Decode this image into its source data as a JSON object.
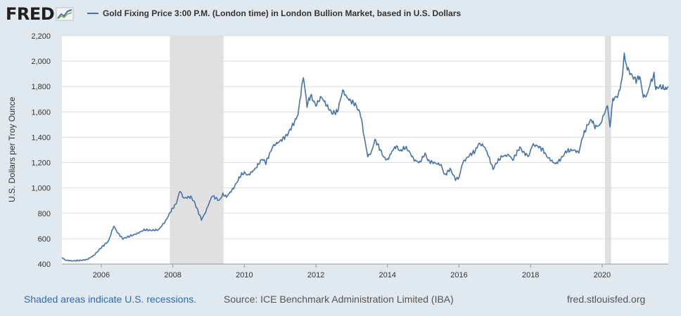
{
  "header": {
    "logo_text": "FRED",
    "logo_icon": "chart-line-icon",
    "legend_label": "Gold Fixing Price 3:00 P.M. (London time) in London Bullion Market, based in U.S. Dollars"
  },
  "footer": {
    "recession_note": "Shaded areas indicate U.S. recessions.",
    "source": "Source: ICE Benchmark Administration Limited (IBA)",
    "url": "fred.stlouisfed.org"
  },
  "colors": {
    "line": "#4572a7",
    "recession": "#e0e0e0",
    "grid": "#dddddd",
    "background": "#e1e9f0"
  },
  "chart_data": {
    "type": "line",
    "title": "",
    "xlabel": "",
    "ylabel": "U.S. Dollars per Troy Ounce",
    "xlim": [
      2004.9,
      2021.85
    ],
    "ylim": [
      400,
      2200
    ],
    "grid": "horizontal",
    "x_ticks": [
      2006,
      2008,
      2010,
      2012,
      2014,
      2016,
      2018,
      2020
    ],
    "x_tick_labels": [
      "2006",
      "2008",
      "2010",
      "2012",
      "2014",
      "2016",
      "2018",
      "2020"
    ],
    "y_ticks": [
      400,
      600,
      800,
      1000,
      1200,
      1400,
      1600,
      1800,
      2000,
      2200
    ],
    "y_tick_labels": [
      "400",
      "600",
      "800",
      "1,000",
      "1,200",
      "1,400",
      "1,600",
      "1,800",
      "2,000",
      "2,200"
    ],
    "recessions": [
      [
        2007.92,
        2009.42
      ],
      [
        2020.08,
        2020.25
      ]
    ],
    "series": [
      {
        "values": [
          [
            2004.9,
            452
          ],
          [
            2005.0,
            430
          ],
          [
            2005.2,
            425
          ],
          [
            2005.4,
            428
          ],
          [
            2005.6,
            435
          ],
          [
            2005.8,
            470
          ],
          [
            2006.0,
            530
          ],
          [
            2006.2,
            580
          ],
          [
            2006.35,
            700
          ],
          [
            2006.45,
            650
          ],
          [
            2006.6,
            600
          ],
          [
            2006.8,
            620
          ],
          [
            2007.0,
            640
          ],
          [
            2007.2,
            670
          ],
          [
            2007.4,
            665
          ],
          [
            2007.6,
            670
          ],
          [
            2007.8,
            740
          ],
          [
            2007.95,
            820
          ],
          [
            2008.1,
            880
          ],
          [
            2008.2,
            980
          ],
          [
            2008.3,
            920
          ],
          [
            2008.5,
            930
          ],
          [
            2008.6,
            890
          ],
          [
            2008.7,
            820
          ],
          [
            2008.8,
            750
          ],
          [
            2008.9,
            800
          ],
          [
            2009.0,
            870
          ],
          [
            2009.1,
            940
          ],
          [
            2009.2,
            920
          ],
          [
            2009.3,
            900
          ],
          [
            2009.4,
            950
          ],
          [
            2009.5,
            930
          ],
          [
            2009.7,
            1000
          ],
          [
            2009.9,
            1100
          ],
          [
            2010.0,
            1120
          ],
          [
            2010.1,
            1100
          ],
          [
            2010.3,
            1150
          ],
          [
            2010.5,
            1230
          ],
          [
            2010.6,
            1200
          ],
          [
            2010.8,
            1330
          ],
          [
            2011.0,
            1370
          ],
          [
            2011.2,
            1420
          ],
          [
            2011.4,
            1520
          ],
          [
            2011.5,
            1580
          ],
          [
            2011.6,
            1790
          ],
          [
            2011.65,
            1880
          ],
          [
            2011.75,
            1650
          ],
          [
            2011.85,
            1730
          ],
          [
            2012.0,
            1650
          ],
          [
            2012.15,
            1720
          ],
          [
            2012.3,
            1650
          ],
          [
            2012.45,
            1590
          ],
          [
            2012.6,
            1600
          ],
          [
            2012.75,
            1770
          ],
          [
            2012.85,
            1720
          ],
          [
            2012.95,
            1690
          ],
          [
            2013.1,
            1660
          ],
          [
            2013.25,
            1580
          ],
          [
            2013.35,
            1400
          ],
          [
            2013.45,
            1250
          ],
          [
            2013.55,
            1280
          ],
          [
            2013.65,
            1380
          ],
          [
            2013.75,
            1330
          ],
          [
            2013.9,
            1240
          ],
          [
            2014.0,
            1220
          ],
          [
            2014.15,
            1300
          ],
          [
            2014.25,
            1330
          ],
          [
            2014.35,
            1290
          ],
          [
            2014.5,
            1320
          ],
          [
            2014.6,
            1290
          ],
          [
            2014.75,
            1220
          ],
          [
            2014.9,
            1200
          ],
          [
            2015.05,
            1270
          ],
          [
            2015.15,
            1210
          ],
          [
            2015.3,
            1200
          ],
          [
            2015.5,
            1180
          ],
          [
            2015.6,
            1100
          ],
          [
            2015.75,
            1150
          ],
          [
            2015.9,
            1070
          ],
          [
            2016.0,
            1080
          ],
          [
            2016.1,
            1200
          ],
          [
            2016.3,
            1260
          ],
          [
            2016.45,
            1290
          ],
          [
            2016.55,
            1350
          ],
          [
            2016.7,
            1330
          ],
          [
            2016.8,
            1270
          ],
          [
            2016.95,
            1150
          ],
          [
            2017.05,
            1200
          ],
          [
            2017.2,
            1250
          ],
          [
            2017.4,
            1260
          ],
          [
            2017.5,
            1220
          ],
          [
            2017.7,
            1320
          ],
          [
            2017.8,
            1280
          ],
          [
            2017.95,
            1250
          ],
          [
            2018.05,
            1340
          ],
          [
            2018.2,
            1330
          ],
          [
            2018.35,
            1300
          ],
          [
            2018.45,
            1250
          ],
          [
            2018.6,
            1210
          ],
          [
            2018.7,
            1190
          ],
          [
            2018.85,
            1230
          ],
          [
            2019.0,
            1290
          ],
          [
            2019.2,
            1300
          ],
          [
            2019.35,
            1280
          ],
          [
            2019.45,
            1400
          ],
          [
            2019.6,
            1500
          ],
          [
            2019.7,
            1540
          ],
          [
            2019.8,
            1480
          ],
          [
            2019.95,
            1500
          ],
          [
            2020.05,
            1580
          ],
          [
            2020.15,
            1650
          ],
          [
            2020.22,
            1480
          ],
          [
            2020.3,
            1700
          ],
          [
            2020.45,
            1730
          ],
          [
            2020.55,
            1850
          ],
          [
            2020.62,
            2060
          ],
          [
            2020.68,
            1950
          ],
          [
            2020.75,
            1920
          ],
          [
            2020.85,
            1880
          ],
          [
            2020.95,
            1850
          ],
          [
            2021.05,
            1880
          ],
          [
            2021.15,
            1720
          ],
          [
            2021.25,
            1730
          ],
          [
            2021.35,
            1830
          ],
          [
            2021.45,
            1890
          ],
          [
            2021.5,
            1780
          ],
          [
            2021.6,
            1800
          ],
          [
            2021.7,
            1790
          ],
          [
            2021.8,
            1780
          ],
          [
            2021.85,
            1800
          ]
        ]
      }
    ]
  }
}
